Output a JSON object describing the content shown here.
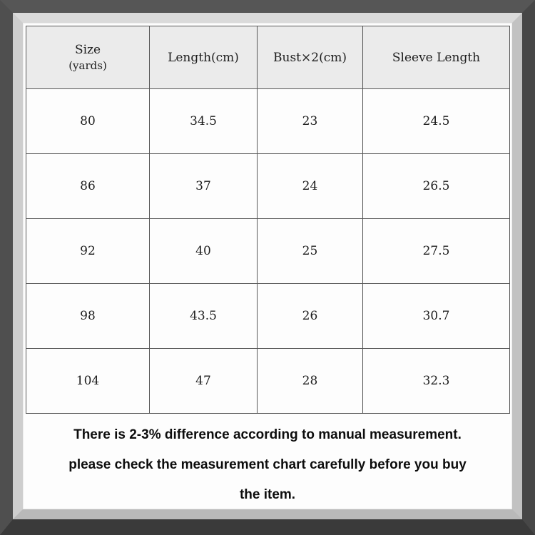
{
  "colors": {
    "frame_outer": "#4a4a4a",
    "frame_band": "#c6c6c6",
    "paper": "#fdfdfd",
    "header_bg": "#ebebeb",
    "grid_line": "#575757",
    "text": "#1d1d1d"
  },
  "table": {
    "headers": [
      {
        "title": "Size",
        "subtitle": "(yards)"
      },
      {
        "title": "Length(cm)",
        "subtitle": ""
      },
      {
        "title": "Bust×2(cm)",
        "subtitle": ""
      },
      {
        "title": "Sleeve Length",
        "subtitle": ""
      }
    ],
    "rows": [
      [
        "80",
        "34.5",
        "23",
        "24.5"
      ],
      [
        "86",
        "37",
        "24",
        "26.5"
      ],
      [
        "92",
        "40",
        "25",
        "27.5"
      ],
      [
        "98",
        "43.5",
        "26",
        "30.7"
      ],
      [
        "104",
        "47",
        "28",
        "32.3"
      ]
    ]
  },
  "notes": [
    "There is 2-3% difference according to manual measurement.",
    "please check the measurement chart carefully before you buy",
    "the item."
  ]
}
